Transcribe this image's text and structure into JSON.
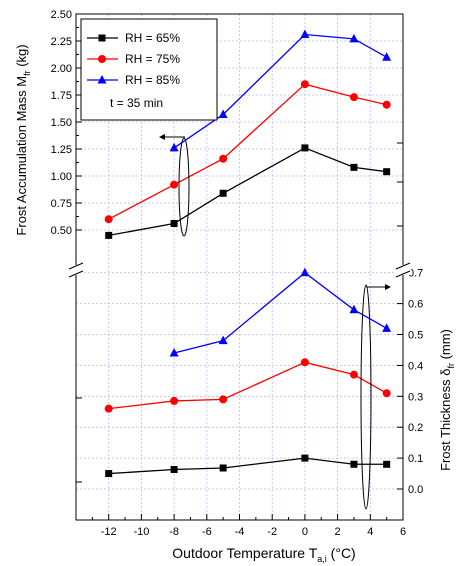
{
  "chart_data": {
    "type": "line",
    "x_axis": {
      "label": "Outdoor Temperature T",
      "label_sub": "a,i",
      "label_unit": " (°C)",
      "range": [
        -14,
        6
      ],
      "ticks": [
        -12,
        -10,
        -8,
        -6,
        -4,
        -2,
        0,
        2,
        4,
        6
      ]
    },
    "y_left": {
      "label": "Frost Accumulation Mass M",
      "label_sub": "fr",
      "label_unit": " (kg)",
      "range": [
        0.25,
        2.5
      ],
      "ticks": [
        0.5,
        0.75,
        1.0,
        1.25,
        1.5,
        1.75,
        2.0,
        2.25,
        2.5
      ],
      "tick_labels": [
        "0.50",
        "0.75",
        "1.00",
        "1.25",
        "1.50",
        "1.75",
        "2.00",
        "2.25",
        "2.50"
      ]
    },
    "y_right": {
      "label": "Frost Thickness δ",
      "label_sub": "fr",
      "label_unit": " (mm)",
      "range": [
        -0.1,
        0.75
      ],
      "ticks": [
        0.0,
        0.1,
        0.2,
        0.3,
        0.4,
        0.5,
        0.6,
        0.7
      ],
      "tick_labels": [
        "0.0",
        "0.1",
        "0.2",
        "0.3",
        "0.4",
        "0.5",
        "0.6",
        "0.7"
      ]
    },
    "grid": true,
    "legend_position": "top-left",
    "annotation": "t = 35 min",
    "mass_series": [
      {
        "name": "RH = 65%",
        "color": "#000000",
        "marker": "square",
        "x": [
          -12,
          -8,
          -5,
          0,
          3,
          5
        ],
        "y": [
          0.45,
          0.56,
          0.84,
          1.26,
          1.08,
          1.04
        ]
      },
      {
        "name": "RH = 75%",
        "color": "#ff0000",
        "marker": "circle",
        "x": [
          -12,
          -8,
          -5,
          0,
          3,
          5
        ],
        "y": [
          0.6,
          0.92,
          1.16,
          1.85,
          1.73,
          1.66
        ]
      },
      {
        "name": "RH = 85%",
        "color": "#0000ff",
        "marker": "triangle",
        "x": [
          -8,
          -5,
          0,
          3,
          5
        ],
        "y": [
          1.26,
          1.57,
          2.31,
          2.27,
          2.1
        ]
      }
    ],
    "thickness_series": [
      {
        "name": "RH = 65%",
        "color": "#000000",
        "marker": "square",
        "x": [
          -12,
          -8,
          -5,
          0,
          3,
          5
        ],
        "y": [
          0.05,
          0.063,
          0.068,
          0.1,
          0.08,
          0.08
        ]
      },
      {
        "name": "RH = 75%",
        "color": "#ff0000",
        "marker": "circle",
        "x": [
          -12,
          -8,
          -5,
          0,
          3,
          5
        ],
        "y": [
          0.26,
          0.285,
          0.29,
          0.41,
          0.37,
          0.31
        ]
      },
      {
        "name": "RH = 85%",
        "color": "#0000ff",
        "marker": "triangle",
        "x": [
          -8,
          -5,
          0,
          3,
          5
        ],
        "y": [
          0.44,
          0.48,
          0.7,
          0.58,
          0.52
        ]
      }
    ]
  }
}
